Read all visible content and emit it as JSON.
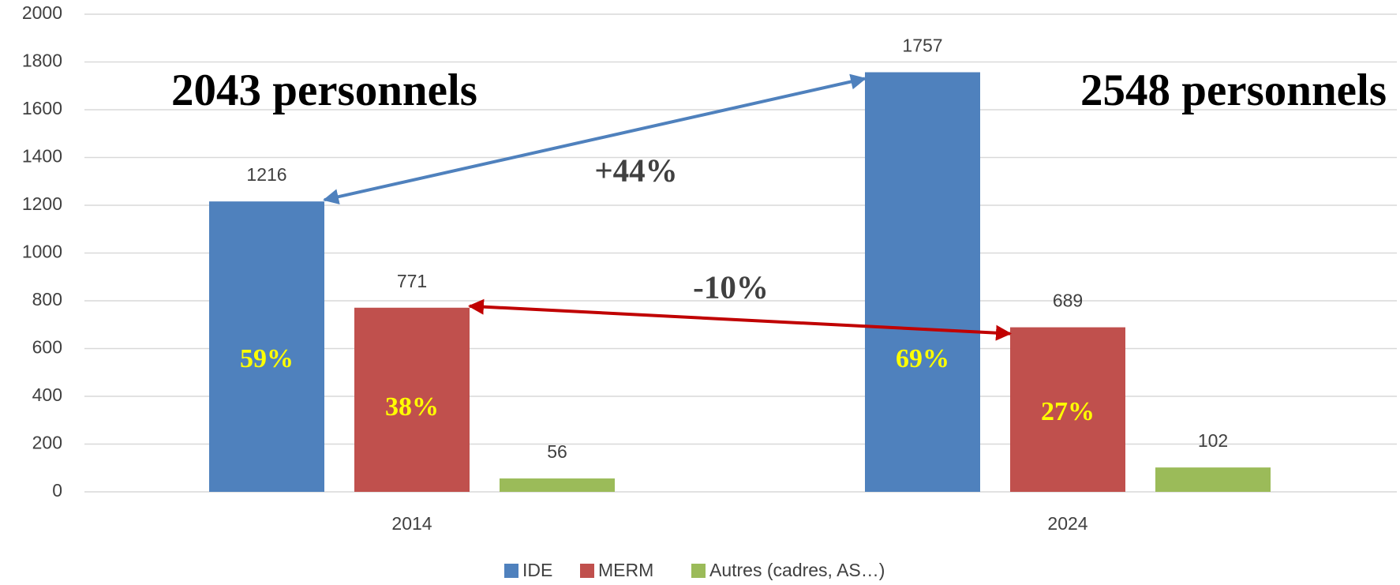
{
  "chart_data": {
    "type": "bar",
    "categories": [
      "2014",
      "2024"
    ],
    "series": [
      {
        "name": "IDE",
        "color": "#4f81bd",
        "values": [
          1216,
          1757
        ],
        "share_labels": [
          "59%",
          "69%"
        ]
      },
      {
        "name": "MERM",
        "color": "#c0504d",
        "values": [
          771,
          689
        ],
        "share_labels": [
          "38%",
          "27%"
        ]
      },
      {
        "name": "Autres (cadres, AS…)",
        "color": "#9bbb59",
        "values": [
          56,
          102
        ]
      }
    ],
    "totals": [
      "2043 personnels",
      "2548 personnels"
    ],
    "changes": [
      {
        "text": "+44%",
        "color": "#1f5f9f"
      },
      {
        "text": "-10%",
        "color": "#c00000"
      }
    ],
    "ylim": [
      0,
      2000
    ],
    "yticks": [
      0,
      200,
      400,
      600,
      800,
      1000,
      1200,
      1400,
      1600,
      1800,
      2000
    ],
    "grid": true,
    "legend": "bottom"
  }
}
